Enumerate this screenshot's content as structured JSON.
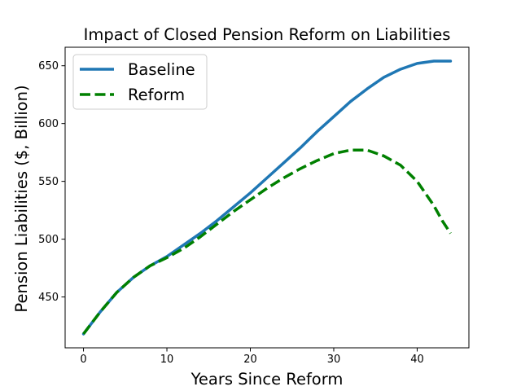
{
  "chart_data": {
    "type": "line",
    "title": "Impact of Closed Pension Reform on Liabilities",
    "xlabel": "Years Since Reform",
    "ylabel": "Pension Liabilities ($, Billion)",
    "xlim": [
      -2.2,
      46.2
    ],
    "ylim": [
      406,
      666
    ],
    "xticks": [
      0,
      10,
      20,
      30,
      40
    ],
    "yticks": [
      450,
      500,
      550,
      600,
      650
    ],
    "grid": false,
    "legend_position": "upper-left",
    "series": [
      {
        "name": "Baseline",
        "color": "#1f77b4",
        "style": "solid",
        "x": [
          0,
          2,
          4,
          6,
          8,
          10,
          12,
          14,
          16,
          18,
          20,
          22,
          24,
          26,
          28,
          30,
          32,
          34,
          36,
          38,
          40,
          42,
          43,
          44
        ],
        "y": [
          418,
          437,
          454,
          467,
          477,
          485,
          495,
          505,
          516,
          528,
          540,
          553,
          566,
          579,
          593,
          606,
          619,
          630,
          640,
          647,
          652,
          654,
          654,
          654
        ]
      },
      {
        "name": "Reform",
        "color": "#008000",
        "style": "dashed",
        "x": [
          0,
          2,
          4,
          6,
          8,
          10,
          12,
          14,
          16,
          18,
          20,
          22,
          24,
          26,
          28,
          30,
          32,
          34,
          36,
          38,
          40,
          42,
          43,
          44
        ],
        "y": [
          418,
          437,
          454,
          467,
          477,
          484,
          492,
          502,
          513,
          524,
          534,
          544,
          553,
          561,
          568,
          574,
          577,
          577,
          572,
          564,
          550,
          529,
          516,
          505
        ]
      }
    ]
  }
}
